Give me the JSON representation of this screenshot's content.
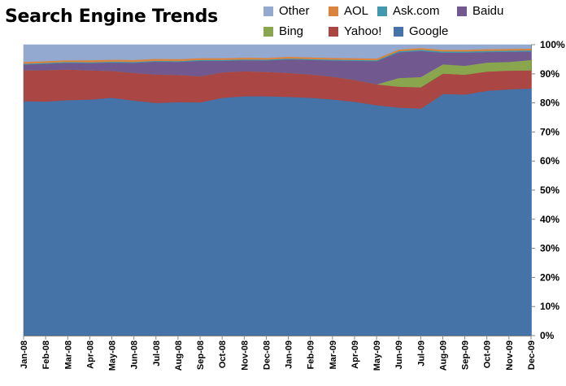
{
  "chart_data": {
    "type": "area",
    "stacked": true,
    "normalized": true,
    "title": "Search Engine Trends",
    "categories": [
      "Jan-08",
      "Feb-08",
      "Mar-08",
      "Apr-08",
      "May-08",
      "Jun-08",
      "Jul-08",
      "Aug-08",
      "Sep-08",
      "Oct-08",
      "Nov-08",
      "Dec-08",
      "Jan-09",
      "Feb-09",
      "Mar-09",
      "Apr-09",
      "May-09",
      "Jun-09",
      "Jul-09",
      "Aug-09",
      "Sep-09",
      "Oct-09",
      "Nov-09",
      "Dec-09"
    ],
    "series": [
      {
        "name": "Google",
        "color": "#4572A7",
        "values": [
          80.6,
          80.5,
          81.0,
          81.2,
          81.8,
          80.8,
          80.0,
          80.3,
          80.2,
          81.8,
          82.3,
          82.3,
          82.1,
          81.8,
          81.2,
          80.4,
          79.2,
          78.4,
          78.1,
          83.1,
          82.9,
          84.2,
          84.7,
          85.0
        ]
      },
      {
        "name": "Yahoo!",
        "color": "#AA4643",
        "values": [
          10.6,
          10.8,
          10.5,
          10.0,
          9.2,
          9.5,
          9.8,
          9.3,
          9.0,
          8.7,
          8.6,
          8.4,
          8.2,
          8.0,
          7.8,
          7.5,
          7.2,
          7.2,
          7.3,
          7.0,
          6.8,
          6.6,
          6.4,
          6.2
        ]
      },
      {
        "name": "Bing",
        "color": "#89A54E",
        "values": [
          0,
          0,
          0,
          0,
          0,
          0,
          0,
          0,
          0,
          0,
          0,
          0,
          0,
          0,
          0,
          0,
          0,
          3.0,
          3.5,
          3.2,
          3.1,
          3.1,
          3.0,
          3.6
        ]
      },
      {
        "name": "Baidu",
        "color": "#71588F",
        "values": [
          2.0,
          2.2,
          2.3,
          2.5,
          2.9,
          3.5,
          4.4,
          4.5,
          5.3,
          4.0,
          3.8,
          3.9,
          4.7,
          5.0,
          5.6,
          6.6,
          8.0,
          8.8,
          9.0,
          4.0,
          4.5,
          3.6,
          3.5,
          2.9
        ]
      },
      {
        "name": "Ask.com",
        "color": "#4198AF",
        "values": [
          0.3,
          0.3,
          0.3,
          0.3,
          0.3,
          0.3,
          0.3,
          0.3,
          0.3,
          0.3,
          0.3,
          0.3,
          0.3,
          0.3,
          0.3,
          0.3,
          0.3,
          0.4,
          0.4,
          0.4,
          0.4,
          0.4,
          0.4,
          0.4
        ]
      },
      {
        "name": "AOL",
        "color": "#DB843D",
        "values": [
          0.6,
          0.6,
          0.6,
          0.7,
          0.7,
          0.7,
          0.7,
          0.7,
          0.6,
          0.6,
          0.6,
          0.6,
          0.6,
          0.6,
          0.6,
          0.6,
          0.6,
          0.6,
          0.6,
          0.6,
          0.6,
          0.6,
          0.6,
          0.6
        ]
      },
      {
        "name": "Other",
        "color": "#93A9CF",
        "values": [
          5.9,
          5.6,
          5.3,
          5.3,
          5.1,
          5.2,
          4.8,
          4.9,
          4.6,
          4.6,
          4.4,
          4.5,
          4.1,
          4.3,
          4.5,
          4.6,
          4.7,
          1.6,
          1.1,
          1.7,
          1.7,
          1.5,
          1.4,
          1.3
        ]
      }
    ],
    "yaxis": {
      "min": 0,
      "max": 100,
      "step": 10,
      "position": "right",
      "format": "percent",
      "tick_labels": [
        "0%",
        "10%",
        "20%",
        "30%",
        "40%",
        "50%",
        "60%",
        "70%",
        "80%",
        "90%",
        "100%"
      ]
    },
    "legend": {
      "placement": "top-right",
      "rows": [
        [
          "Other",
          "AOL",
          "Ask.com",
          "Baidu"
        ],
        [
          "Bing",
          "Yahoo!",
          "Google"
        ]
      ]
    },
    "grid": false
  }
}
